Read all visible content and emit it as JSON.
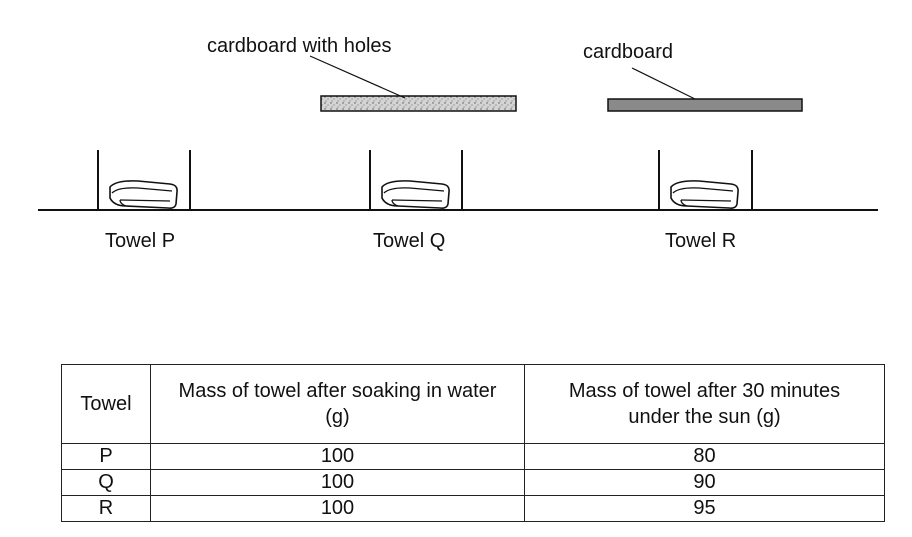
{
  "labels": {
    "holes_cardboard": "cardboard with holes",
    "plain_cardboard": "cardboard"
  },
  "towels": [
    {
      "label": "Towel P",
      "cover": "none"
    },
    {
      "label": "Towel Q",
      "cover": "cardboard with holes"
    },
    {
      "label": "Towel R",
      "cover": "cardboard"
    }
  ],
  "table": {
    "headers": [
      "Towel",
      "Mass of towel after soaking in water (g)",
      "Mass of towel after 30 minutes under the sun (g)"
    ],
    "rows": [
      {
        "towel": "P",
        "soaked": "100",
        "after_sun": "80"
      },
      {
        "towel": "Q",
        "soaked": "100",
        "after_sun": "90"
      },
      {
        "towel": "R",
        "soaked": "100",
        "after_sun": "95"
      }
    ]
  },
  "colors": {
    "holes_fill": "#c8c8c8",
    "plain_fill": "#8a8a8a",
    "line": "#111111"
  }
}
